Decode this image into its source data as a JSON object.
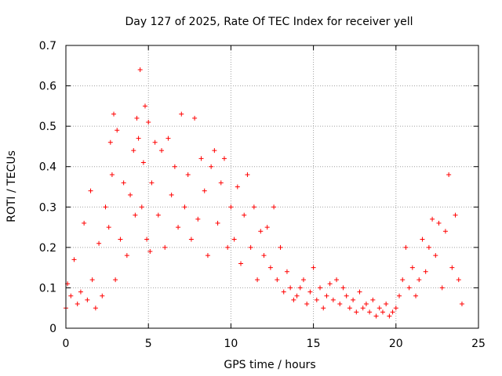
{
  "chart_data": {
    "type": "scatter",
    "title": "Day 127 of 2025, Rate Of TEC Index for receiver yell",
    "xlabel": "GPS time / hours",
    "ylabel": "ROTI / TECUs",
    "xlim": [
      0,
      25
    ],
    "ylim": [
      0,
      0.7
    ],
    "x_ticks": [
      0,
      5,
      10,
      15,
      20,
      25
    ],
    "x_tick_labels": [
      "0",
      "5",
      "10",
      "15",
      "20",
      "25"
    ],
    "y_ticks": [
      0,
      0.1,
      0.2,
      0.3,
      0.4,
      0.5,
      0.6,
      0.7
    ],
    "y_tick_labels": [
      "0",
      "0.1",
      "0.2",
      "0.3",
      "0.4",
      "0.5",
      "0.6",
      "0.7"
    ],
    "grid": true,
    "marker": "plus",
    "marker_color": "#ff0000",
    "series": [
      {
        "name": "ROTI",
        "x": [
          0.0,
          0.1,
          0.3,
          0.5,
          0.7,
          0.9,
          1.1,
          1.3,
          1.5,
          1.6,
          1.8,
          2.0,
          2.2,
          2.4,
          2.6,
          2.7,
          2.8,
          2.9,
          3.0,
          3.1,
          3.3,
          3.5,
          3.7,
          3.9,
          4.1,
          4.2,
          4.3,
          4.4,
          4.5,
          4.6,
          4.7,
          4.8,
          4.9,
          5.0,
          5.1,
          5.2,
          5.4,
          5.6,
          5.8,
          6.0,
          6.2,
          6.4,
          6.6,
          6.8,
          7.0,
          7.2,
          7.4,
          7.6,
          7.8,
          8.0,
          8.2,
          8.4,
          8.6,
          8.8,
          9.0,
          9.2,
          9.4,
          9.6,
          9.8,
          10.0,
          10.2,
          10.4,
          10.6,
          10.8,
          11.0,
          11.2,
          11.4,
          11.6,
          11.8,
          12.0,
          12.2,
          12.4,
          12.6,
          12.8,
          13.0,
          13.2,
          13.4,
          13.6,
          13.8,
          14.0,
          14.2,
          14.4,
          14.6,
          14.8,
          15.0,
          15.2,
          15.4,
          15.6,
          15.8,
          16.0,
          16.2,
          16.4,
          16.6,
          16.8,
          17.0,
          17.2,
          17.4,
          17.6,
          17.8,
          18.0,
          18.2,
          18.4,
          18.6,
          18.8,
          19.0,
          19.2,
          19.4,
          19.6,
          19.8,
          20.0,
          20.2,
          20.4,
          20.6,
          20.8,
          21.0,
          21.2,
          21.4,
          21.6,
          21.8,
          22.0,
          22.2,
          22.4,
          22.6,
          22.8,
          23.0,
          23.2,
          23.4,
          23.6,
          23.8,
          24.0
        ],
        "y": [
          0.05,
          0.11,
          0.08,
          0.17,
          0.06,
          0.09,
          0.26,
          0.07,
          0.34,
          0.12,
          0.05,
          0.21,
          0.08,
          0.3,
          0.25,
          0.46,
          0.38,
          0.53,
          0.12,
          0.49,
          0.22,
          0.36,
          0.18,
          0.33,
          0.44,
          0.28,
          0.52,
          0.47,
          0.64,
          0.3,
          0.41,
          0.55,
          0.22,
          0.51,
          0.19,
          0.36,
          0.46,
          0.28,
          0.44,
          0.2,
          0.47,
          0.33,
          0.4,
          0.25,
          0.53,
          0.3,
          0.38,
          0.22,
          0.52,
          0.27,
          0.42,
          0.34,
          0.18,
          0.4,
          0.44,
          0.26,
          0.36,
          0.42,
          0.2,
          0.3,
          0.22,
          0.35,
          0.16,
          0.28,
          0.38,
          0.2,
          0.3,
          0.12,
          0.24,
          0.18,
          0.25,
          0.15,
          0.3,
          0.12,
          0.2,
          0.09,
          0.14,
          0.1,
          0.07,
          0.08,
          0.1,
          0.12,
          0.06,
          0.09,
          0.15,
          0.07,
          0.1,
          0.05,
          0.08,
          0.11,
          0.07,
          0.12,
          0.06,
          0.1,
          0.08,
          0.05,
          0.07,
          0.04,
          0.09,
          0.05,
          0.06,
          0.04,
          0.07,
          0.03,
          0.05,
          0.04,
          0.06,
          0.03,
          0.04,
          0.05,
          0.08,
          0.12,
          0.2,
          0.1,
          0.15,
          0.08,
          0.12,
          0.22,
          0.14,
          0.2,
          0.27,
          0.18,
          0.26,
          0.1,
          0.24,
          0.38,
          0.15,
          0.28,
          0.12,
          0.06
        ]
      }
    ],
    "annotations": []
  }
}
